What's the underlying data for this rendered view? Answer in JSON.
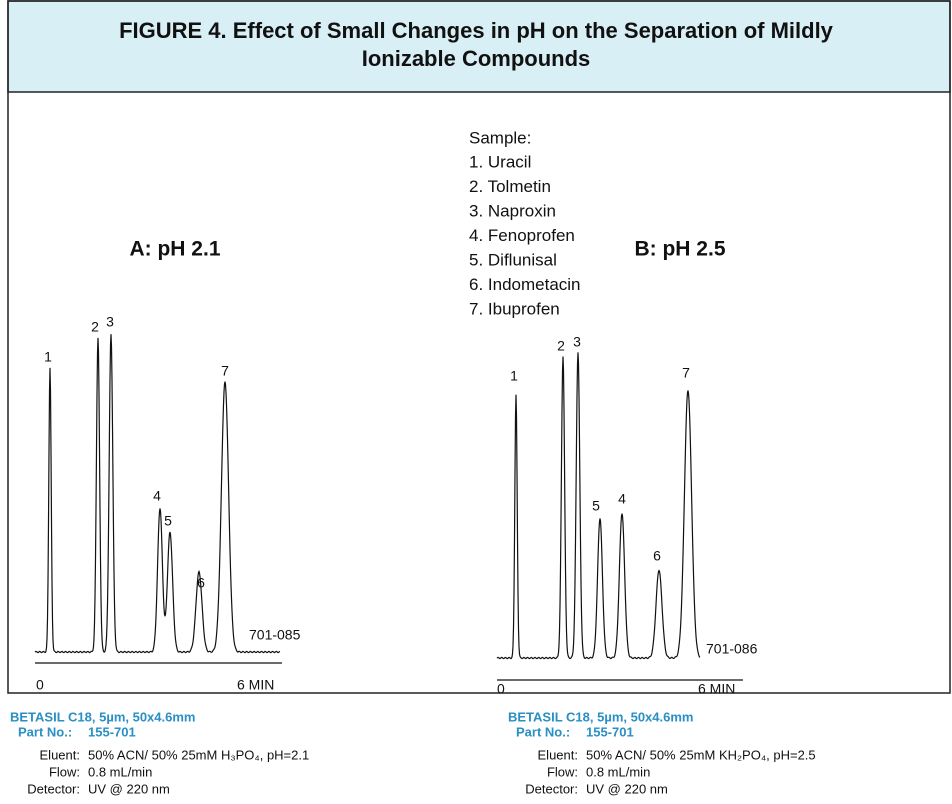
{
  "header": {
    "title_lines": [
      "FIGURE 4. Effect of Small Changes in pH on the Separation of Mildly",
      "Ionizable Compounds"
    ]
  },
  "sample": {
    "heading": "Sample:",
    "items": [
      "1. Uracil",
      "2. Tolmetin",
      "3. Naproxin",
      "4. Fenoprofen",
      "5. Diflunisal",
      "6. Indometacin",
      "7. Ibuprofen"
    ]
  },
  "panels": [
    {
      "label": "A: pH 2.1",
      "peaks": [
        "1",
        "2",
        "3",
        "4",
        "5",
        "6",
        "7"
      ],
      "code": "701-085",
      "axis": {
        "start": "0",
        "end": "6 MIN"
      },
      "footer": {
        "column": "BETASIL C18, 5µm, 50x4.6mm",
        "part_label": "Part No.:",
        "part_value": "155-701",
        "rows": [
          {
            "label": "Eluent:",
            "value": "50% ACN/ 50%  25mM H₃PO₄, pH=2.1"
          },
          {
            "label": "Flow:",
            "value": "0.8 mL/min"
          },
          {
            "label": "Detector:",
            "value": "UV @ 220 nm"
          }
        ]
      }
    },
    {
      "label": "B: pH 2.5",
      "peaks": [
        "1",
        "2",
        "3",
        "5",
        "4",
        "6",
        "7"
      ],
      "code": "701-086",
      "axis": {
        "start": "0",
        "end": "6 MIN"
      },
      "footer": {
        "column": "BETASIL C18, 5µm, 50x4.6mm",
        "part_label": "Part No.:",
        "part_value": "155-701",
        "rows": [
          {
            "label": "Eluent:",
            "value": "50% ACN/ 50%  25mM KH₂PO₄, pH=2.5"
          },
          {
            "label": "Flow:",
            "value": "0.8 mL/min"
          },
          {
            "label": "Detector:",
            "value": "UV @ 220 nm"
          }
        ]
      }
    }
  ]
}
